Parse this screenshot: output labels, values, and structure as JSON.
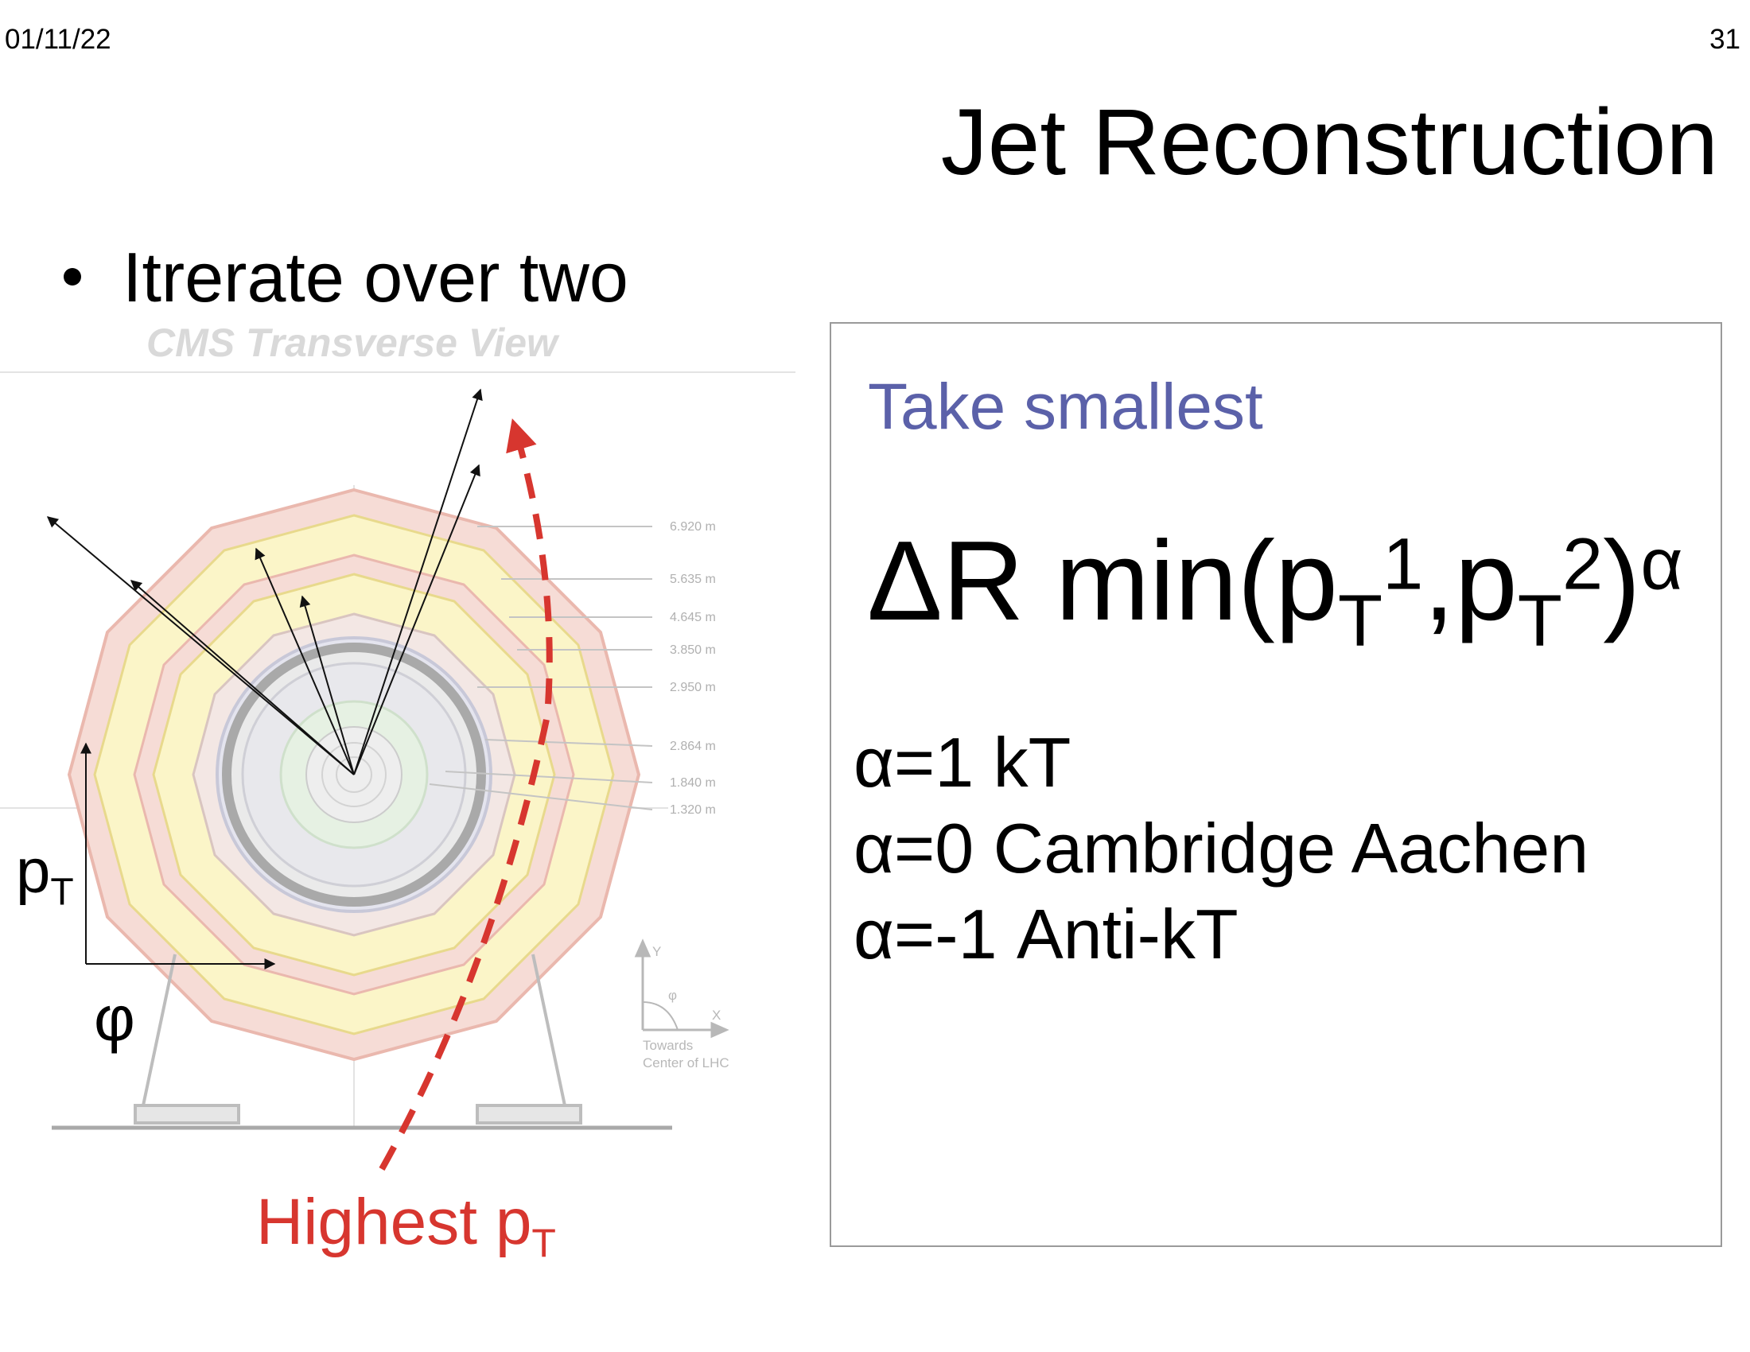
{
  "header": {
    "date": "01/11/22",
    "page_number": "31"
  },
  "title": "Jet Reconstruction",
  "bullet": "Itrerate over two",
  "diagram": {
    "title": "CMS Transverse View",
    "radii_labels": [
      "6.920 m",
      "5.635 m",
      "4.645 m",
      "3.850 m",
      "2.950 m",
      "2.864 m",
      "1.840 m",
      "1.320 m"
    ],
    "axis_y": "Y",
    "axis_x": "X",
    "axis_phi": "φ",
    "towards_line1": "Towards",
    "towards_line2": "Center of LHC"
  },
  "pt_label": {
    "main": "p",
    "sub": "T"
  },
  "phi_label": "φ",
  "highest": {
    "main": "Highest p",
    "sub": "T"
  },
  "box": {
    "heading": "Take smallest",
    "formula": {
      "part1": "ΔR min(p",
      "sub1": "T",
      "sup1": "1",
      "part2": ",p",
      "sub2": "T",
      "sup2": "2",
      "part3": ")",
      "sup3": "α"
    },
    "lines": [
      "α=1  kT",
      "α=0 Cambridge Aachen",
      "α=-1 Anti-kT"
    ]
  },
  "colors": {
    "accent_red": "#d7362f",
    "heading_blue": "#5b61a9"
  }
}
